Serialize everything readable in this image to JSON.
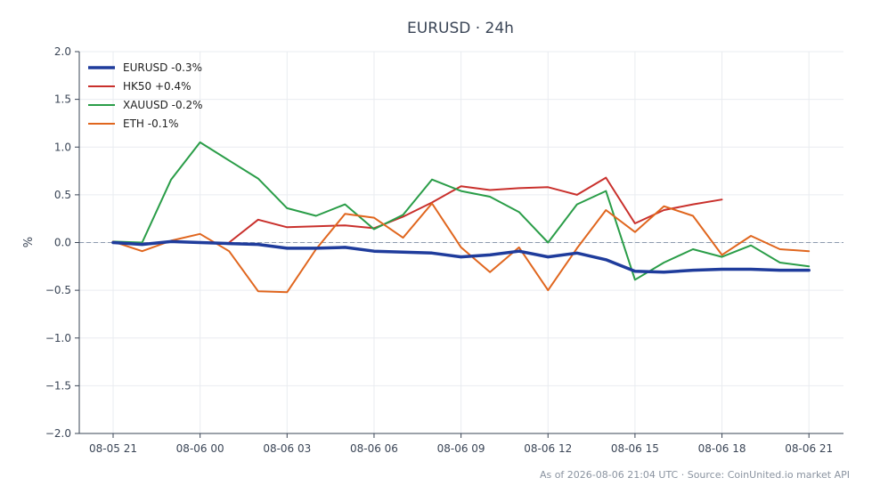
{
  "chart_data": {
    "type": "line",
    "title": "EURUSD · 24h",
    "xlabel": "",
    "ylabel": "%",
    "ylim": [
      -2.0,
      2.0
    ],
    "y_ticks": [
      "2.0",
      "1.5",
      "1.0",
      "0.5",
      "0.0",
      "−0.5",
      "−1.0",
      "−1.5",
      "−2.0"
    ],
    "x_ticks": [
      "08-05 21",
      "08-06 00",
      "08-06 03",
      "08-06 06",
      "08-06 09",
      "08-06 12",
      "08-06 15",
      "08-06 18",
      "08-06 21"
    ],
    "x": [
      "08-05 21",
      "08-05 22",
      "08-05 23",
      "08-06 00",
      "08-06 01",
      "08-06 02",
      "08-06 03",
      "08-06 04",
      "08-06 05",
      "08-06 06",
      "08-06 07",
      "08-06 08",
      "08-06 09",
      "08-06 10",
      "08-06 11",
      "08-06 12",
      "08-06 13",
      "08-06 14",
      "08-06 15",
      "08-06 16",
      "08-06 17",
      "08-06 18",
      "08-06 19",
      "08-06 20",
      "08-06 21"
    ],
    "zero_line": true,
    "grid": true,
    "legend_position": "top-left",
    "series": [
      {
        "name": "EURUSD -0.3%",
        "color": "#1f3c9c",
        "width": 3.5,
        "values": [
          0.0,
          -0.02,
          0.01,
          0.0,
          -0.01,
          -0.02,
          -0.06,
          -0.06,
          -0.05,
          -0.09,
          -0.1,
          -0.11,
          -0.15,
          -0.13,
          -0.09,
          -0.15,
          -0.11,
          -0.18,
          -0.3,
          -0.31,
          -0.29,
          -0.28,
          -0.28,
          -0.29,
          -0.29
        ]
      },
      {
        "name": "HK50 +0.4%",
        "color": "#c9302c",
        "width": 2,
        "values": [
          null,
          null,
          null,
          null,
          0.0,
          0.24,
          0.16,
          0.17,
          0.18,
          0.15,
          0.27,
          0.42,
          0.59,
          0.55,
          0.57,
          0.58,
          0.5,
          0.68,
          0.2,
          0.34,
          0.4,
          0.45,
          null,
          null,
          null
        ]
      },
      {
        "name": "XAUUSD -0.2%",
        "color": "#2a9d48",
        "width": 2,
        "values": [
          0.01,
          0.0,
          0.66,
          1.05,
          0.86,
          0.67,
          0.36,
          0.28,
          0.4,
          0.14,
          0.29,
          0.66,
          0.54,
          0.48,
          0.32,
          0.0,
          0.4,
          0.54,
          -0.39,
          -0.21,
          -0.07,
          -0.15,
          -0.03,
          -0.21,
          -0.25
        ]
      },
      {
        "name": "ETH -0.1%",
        "color": "#e0661e",
        "width": 2,
        "values": [
          0.01,
          -0.09,
          0.02,
          0.09,
          -0.09,
          -0.51,
          -0.52,
          -0.07,
          0.3,
          0.26,
          0.05,
          0.41,
          -0.05,
          -0.31,
          -0.05,
          -0.5,
          -0.06,
          0.34,
          0.11,
          0.38,
          0.28,
          -0.13,
          0.07,
          -0.07,
          -0.09
        ]
      }
    ]
  },
  "footer": {
    "text": "As of 2026-08-06 21:04 UTC · Source: CoinUnited.io market API"
  }
}
